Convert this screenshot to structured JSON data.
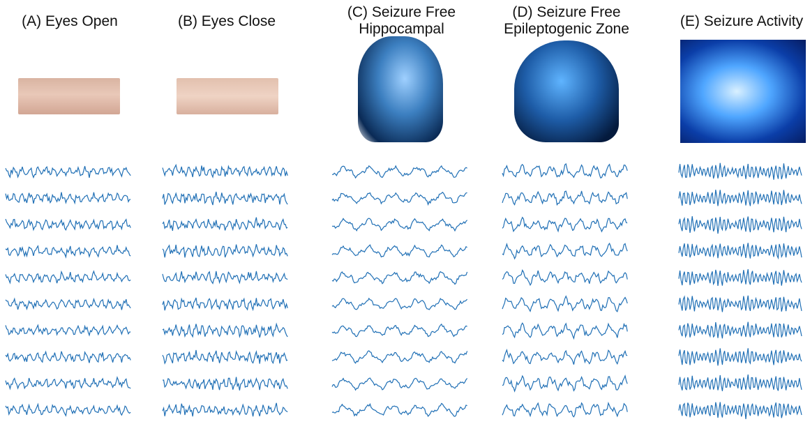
{
  "panels": [
    {
      "id": "a",
      "title": "(A) Eyes Open",
      "picture": "eyes-open-photo",
      "rows": 10,
      "amp": 7,
      "freq": 0.55,
      "noise": 0.9
    },
    {
      "id": "b",
      "title": "(B) Eyes Close",
      "picture": "eyes-closed-photo",
      "rows": 10,
      "amp": 8,
      "freq": 0.65,
      "noise": 1.0
    },
    {
      "id": "c",
      "title": "(C) Seizure Free\nHippocampal",
      "picture": "brain-hippocampus-image",
      "rows": 10,
      "amp": 9,
      "freq": 0.18,
      "noise": 0.45
    },
    {
      "id": "d",
      "title": "(D) Seizure Free\nEpileptogenic Zone",
      "picture": "brain-epileptogenic-image",
      "rows": 10,
      "amp": 10,
      "freq": 0.3,
      "noise": 0.6
    },
    {
      "id": "e",
      "title": "(E) Seizure Activity",
      "picture": "brain-seizure-image",
      "rows": 10,
      "amp": 13,
      "freq": 1.1,
      "noise": 0.35
    }
  ],
  "trace_color": "#1f6fb5"
}
